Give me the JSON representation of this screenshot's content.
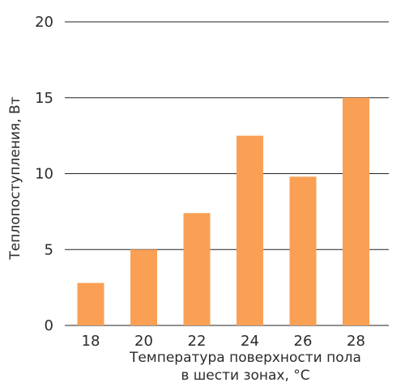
{
  "chart_data": {
    "type": "bar",
    "categories": [
      "18",
      "20",
      "22",
      "24",
      "26",
      "28"
    ],
    "values": [
      2.8,
      5.0,
      7.4,
      12.5,
      9.8,
      15.0
    ],
    "xlabel_line1": "Температура поверхности пола",
    "xlabel_line2": "в шести зонах, °С",
    "ylabel": "Теплопоступления, Вт",
    "ylim": [
      0,
      20
    ],
    "yticks": [
      "0",
      "5",
      "10",
      "15",
      "20"
    ],
    "grid": true,
    "legend": "none",
    "bar_color": "#F9A055",
    "grid_color": "#222222",
    "text_color": "#2b2b2b"
  }
}
